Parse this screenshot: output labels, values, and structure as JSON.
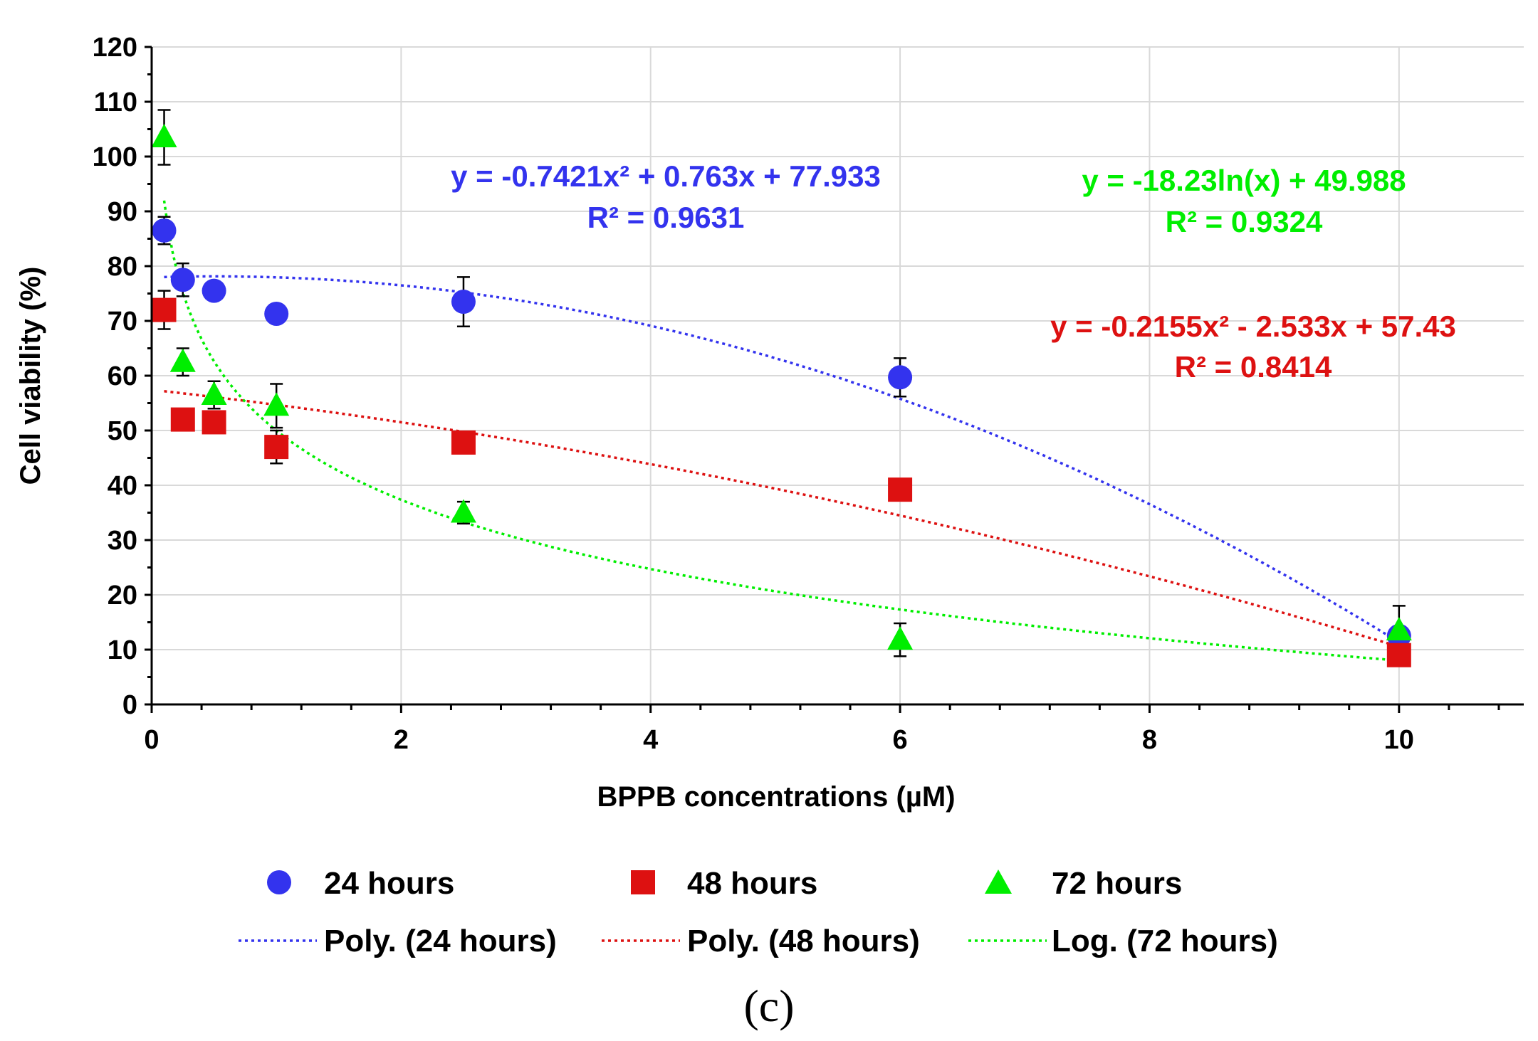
{
  "chart_data": {
    "type": "scatter",
    "panel_label": "(c)",
    "xlabel": "BPPB concentrations (µM)",
    "ylabel": "Cell viability (%)",
    "xlim": [
      0,
      11
    ],
    "ylim": [
      0,
      120
    ],
    "x_ticks": [
      0,
      2,
      4,
      6,
      8,
      10
    ],
    "y_ticks": [
      0,
      10,
      20,
      30,
      40,
      50,
      60,
      70,
      80,
      90,
      100,
      110,
      120
    ],
    "grid": true,
    "legend_position": "bottom",
    "series": [
      {
        "name": "24 hours",
        "marker": "circle",
        "color": "#3333ee",
        "x": [
          0.1,
          0.25,
          0.5,
          1,
          2.5,
          6,
          10
        ],
        "y": [
          86.5,
          77.5,
          75.5,
          71.3,
          73.5,
          59.7,
          12.5
        ],
        "error": [
          2.5,
          3.0,
          0,
          0,
          4.5,
          3.5,
          0
        ],
        "trendline": {
          "label": "Poly. (24 hours)",
          "kind": "poly2",
          "coefficients": [
            -0.7421,
            0.763,
            77.933
          ],
          "equation": "y = -0.7421x² + 0.763x + 77.933",
          "r2": "R² = 0.9631"
        }
      },
      {
        "name": "48 hours",
        "marker": "square",
        "color": "#dd1111",
        "x": [
          0.1,
          0.25,
          0.5,
          1,
          2.5,
          6,
          10
        ],
        "y": [
          72.0,
          52.0,
          51.5,
          47.0,
          47.8,
          39.2,
          9.0
        ],
        "error": [
          3.5,
          0,
          0,
          3.0,
          0,
          0,
          0
        ],
        "trendline": {
          "label": "Poly. (48 hours)",
          "kind": "poly2",
          "coefficients": [
            -0.2155,
            -2.533,
            57.43
          ],
          "equation": "y = -0.2155x² - 2.533x + 57.43",
          "r2": "R² = 0.8414"
        }
      },
      {
        "name": "72 hours",
        "marker": "triangle",
        "color": "#00ee00",
        "x": [
          0.1,
          0.25,
          0.5,
          1,
          2.5,
          6,
          10
        ],
        "y": [
          103.5,
          62.5,
          56.5,
          54.5,
          35.0,
          11.8,
          13.5
        ],
        "error": [
          5.0,
          2.5,
          2.5,
          4.0,
          2.0,
          3.0,
          4.5
        ],
        "trendline": {
          "label": "Log. (72 hours)",
          "kind": "log",
          "coefficients": [
            -18.23,
            49.988
          ],
          "equation": "y = -18.23ln(x) + 49.988",
          "r2": "R² = 0.9324"
        }
      }
    ]
  }
}
